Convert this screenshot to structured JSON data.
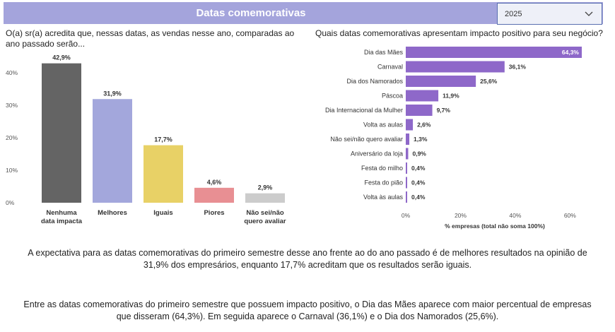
{
  "header": {
    "title": "Datas comemorativas"
  },
  "filter": {
    "selected": "2025",
    "icon": "chevron-down-icon"
  },
  "left_chart": {
    "question": "O(a) sr(a) acredita que, nessas datas, as vendas nesse ano, comparadas ao ano passado serão...",
    "chart_data": {
      "type": "bar",
      "categories": [
        "Nenhuma data impacta",
        "Melhores",
        "Iguais",
        "Piores",
        "Não sei/não quero avaliar"
      ],
      "category_lines": [
        [
          "Nenhuma",
          "data impacta"
        ],
        [
          "Melhores"
        ],
        [
          "Iguais"
        ],
        [
          "Piores"
        ],
        [
          "Não sei/não",
          "quero avaliar"
        ]
      ],
      "values": [
        42.9,
        31.9,
        17.7,
        4.6,
        2.9
      ],
      "value_labels": [
        "42,9%",
        "31,9%",
        "17,7%",
        "4,6%",
        "2,9%"
      ],
      "colors": [
        "#646464",
        "#a3a7dc",
        "#e8d166",
        "#e88f93",
        "#cccccc"
      ],
      "yticks": [
        "0%",
        "10%",
        "20%",
        "30%",
        "40%"
      ],
      "ylim": [
        0,
        45
      ],
      "grid": false
    }
  },
  "right_chart": {
    "question": "Quais datas comemorativas apresentam impacto positivo para seu negócio?",
    "chart_data": {
      "type": "bar",
      "orientation": "horizontal",
      "categories": [
        "Dia das Mães",
        "Carnaval",
        "Dia dos Namorados",
        "Páscoa",
        "Dia Internacional da Mulher",
        "Volta as aulas",
        "Não sei/não quero avaliar",
        "Aniversário da loja",
        "Festa do milho",
        "Festa do pião",
        "Volta às aulas"
      ],
      "values": [
        64.3,
        36.1,
        25.6,
        11.9,
        9.7,
        2.6,
        1.3,
        0.9,
        0.4,
        0.4,
        0.4
      ],
      "value_labels": [
        "64,3%",
        "36,1%",
        "25,6%",
        "11,9%",
        "9,7%",
        "2,6%",
        "1,3%",
        "0,9%",
        "0,4%",
        "0,4%",
        "0,4%"
      ],
      "color": "#8e68c9",
      "xticks": [
        "0%",
        "20%",
        "40%",
        "60%"
      ],
      "xlim": [
        0,
        64.3
      ],
      "xlabel": "% empresas (total não soma 100%)",
      "grid": false
    }
  },
  "summary": [
    "A expectativa para as datas comemorativas do primeiro semestre desse ano frente ao do ano passado é de melhores resultados na opinião de 31,9% dos empresários, enquanto 17,7% acreditam que os resultados serão iguais.",
    "Entre as datas comemorativas do primeiro semestre que possuem impacto positivo, o Dia das Mães aparece com maior percentual de empresas que disseram (64,3%). Em seguida aparece o Carnaval (36,1%) e o Dia dos Namorados (25,6%)."
  ]
}
